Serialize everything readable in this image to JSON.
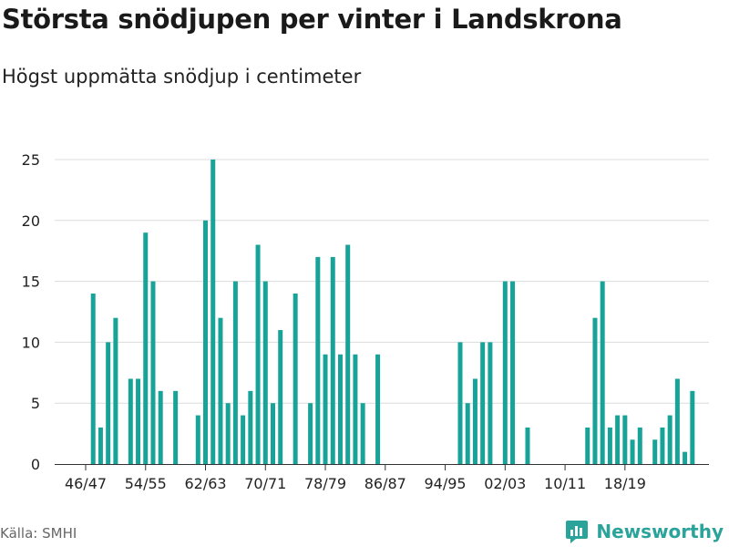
{
  "title": "Största snödjupen per vinter i Landskrona",
  "subtitle": "Högst uppmätta snödjup i centimeter",
  "source": "Källa: SMHI",
  "brand": {
    "name": "Newsworthy",
    "color": "#2aa39a"
  },
  "chart_data": {
    "type": "bar",
    "color": "#17a398",
    "ylim": [
      0,
      25
    ],
    "yticks": [
      0,
      5,
      10,
      15,
      20,
      25
    ],
    "xticks": [
      {
        "label": "46/47",
        "index": 0
      },
      {
        "label": "54/55",
        "index": 8
      },
      {
        "label": "62/63",
        "index": 16
      },
      {
        "label": "70/71",
        "index": 24
      },
      {
        "label": "78/79",
        "index": 32
      },
      {
        "label": "86/87",
        "index": 40
      },
      {
        "label": "94/95",
        "index": 48
      },
      {
        "label": "02/03",
        "index": 56
      },
      {
        "label": "10/11",
        "index": 64
      },
      {
        "label": "18/19",
        "index": 72
      }
    ],
    "categories": [
      "46/47",
      "47/48",
      "48/49",
      "49/50",
      "50/51",
      "51/52",
      "52/53",
      "53/54",
      "54/55",
      "55/56",
      "56/57",
      "57/58",
      "58/59",
      "59/60",
      "60/61",
      "61/62",
      "62/63",
      "63/64",
      "64/65",
      "65/66",
      "66/67",
      "67/68",
      "68/69",
      "69/70",
      "70/71",
      "71/72",
      "72/73",
      "73/74",
      "74/75",
      "75/76",
      "76/77",
      "77/78",
      "78/79",
      "79/80",
      "80/81",
      "81/82",
      "82/83",
      "83/84",
      "84/85",
      "85/86",
      "86/87",
      "87/88",
      "88/89",
      "89/90",
      "90/91",
      "91/92",
      "92/93",
      "93/94",
      "94/95",
      "95/96",
      "96/97",
      "97/98",
      "98/99",
      "99/00",
      "00/01",
      "01/02",
      "02/03",
      "03/04",
      "04/05",
      "05/06",
      "06/07",
      "07/08",
      "08/09",
      "09/10",
      "10/11",
      "11/12",
      "12/13",
      "13/14",
      "14/15",
      "15/16",
      "16/17",
      "17/18",
      "18/19",
      "19/20",
      "20/21",
      "21/22",
      "22/23",
      "23/24",
      "24/25",
      "25/26",
      "26/27",
      "27/28"
    ],
    "values": [
      0,
      14,
      3,
      10,
      12,
      0,
      7,
      7,
      19,
      15,
      6,
      0,
      6,
      0,
      0,
      4,
      20,
      25,
      12,
      5,
      15,
      4,
      6,
      18,
      15,
      5,
      11,
      0,
      14,
      0,
      5,
      17,
      9,
      17,
      9,
      18,
      9,
      5,
      0,
      9,
      0,
      0,
      0,
      0,
      0,
      0,
      0,
      0,
      0,
      0,
      10,
      5,
      7,
      10,
      10,
      0,
      15,
      15,
      0,
      3,
      0,
      0,
      0,
      0,
      0,
      0,
      0,
      3,
      12,
      15,
      3,
      4,
      4,
      2,
      3,
      0,
      2,
      3,
      4,
      7,
      1,
      6
    ],
    "xlabel": "",
    "ylabel": ""
  }
}
